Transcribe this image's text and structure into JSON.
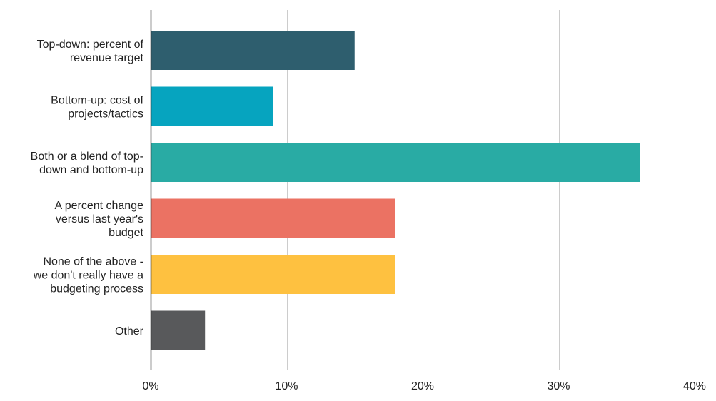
{
  "chart_data": {
    "type": "bar",
    "orientation": "horizontal",
    "title": "",
    "xlabel": "",
    "ylabel": "",
    "categories": [
      "Top-down: percent of revenue target",
      "Bottom-up: cost of projects/tactics",
      "Both or a blend of top-down and bottom-up",
      "A percent change versus last year's budget",
      "None of the above - we don't really have a budgeting process",
      "Other"
    ],
    "category_label_lines": [
      [
        "Top-down: percent of",
        "revenue target"
      ],
      [
        "Bottom-up: cost of",
        "projects/tactics"
      ],
      [
        "Both or a blend of top-",
        "down and bottom-up"
      ],
      [
        "A percent change",
        "versus last year's",
        "budget"
      ],
      [
        "None of the above -",
        "we don't really have a",
        "budgeting process"
      ],
      [
        "Other"
      ]
    ],
    "values": [
      15,
      9,
      36,
      18,
      18,
      4
    ],
    "value_unit": "%",
    "xlim": [
      0,
      40
    ],
    "x_ticks": [
      0,
      10,
      20,
      30,
      40
    ],
    "x_tick_labels": [
      "0%",
      "10%",
      "20%",
      "30%",
      "40%"
    ],
    "grid": true,
    "legend": "none",
    "bar_colors": [
      "#2e5e6e",
      "#06a4bf",
      "#29aba4",
      "#eb7263",
      "#fec140",
      "#58595b"
    ],
    "gridline_color": "#cccccc",
    "axis_color": "#333333"
  }
}
